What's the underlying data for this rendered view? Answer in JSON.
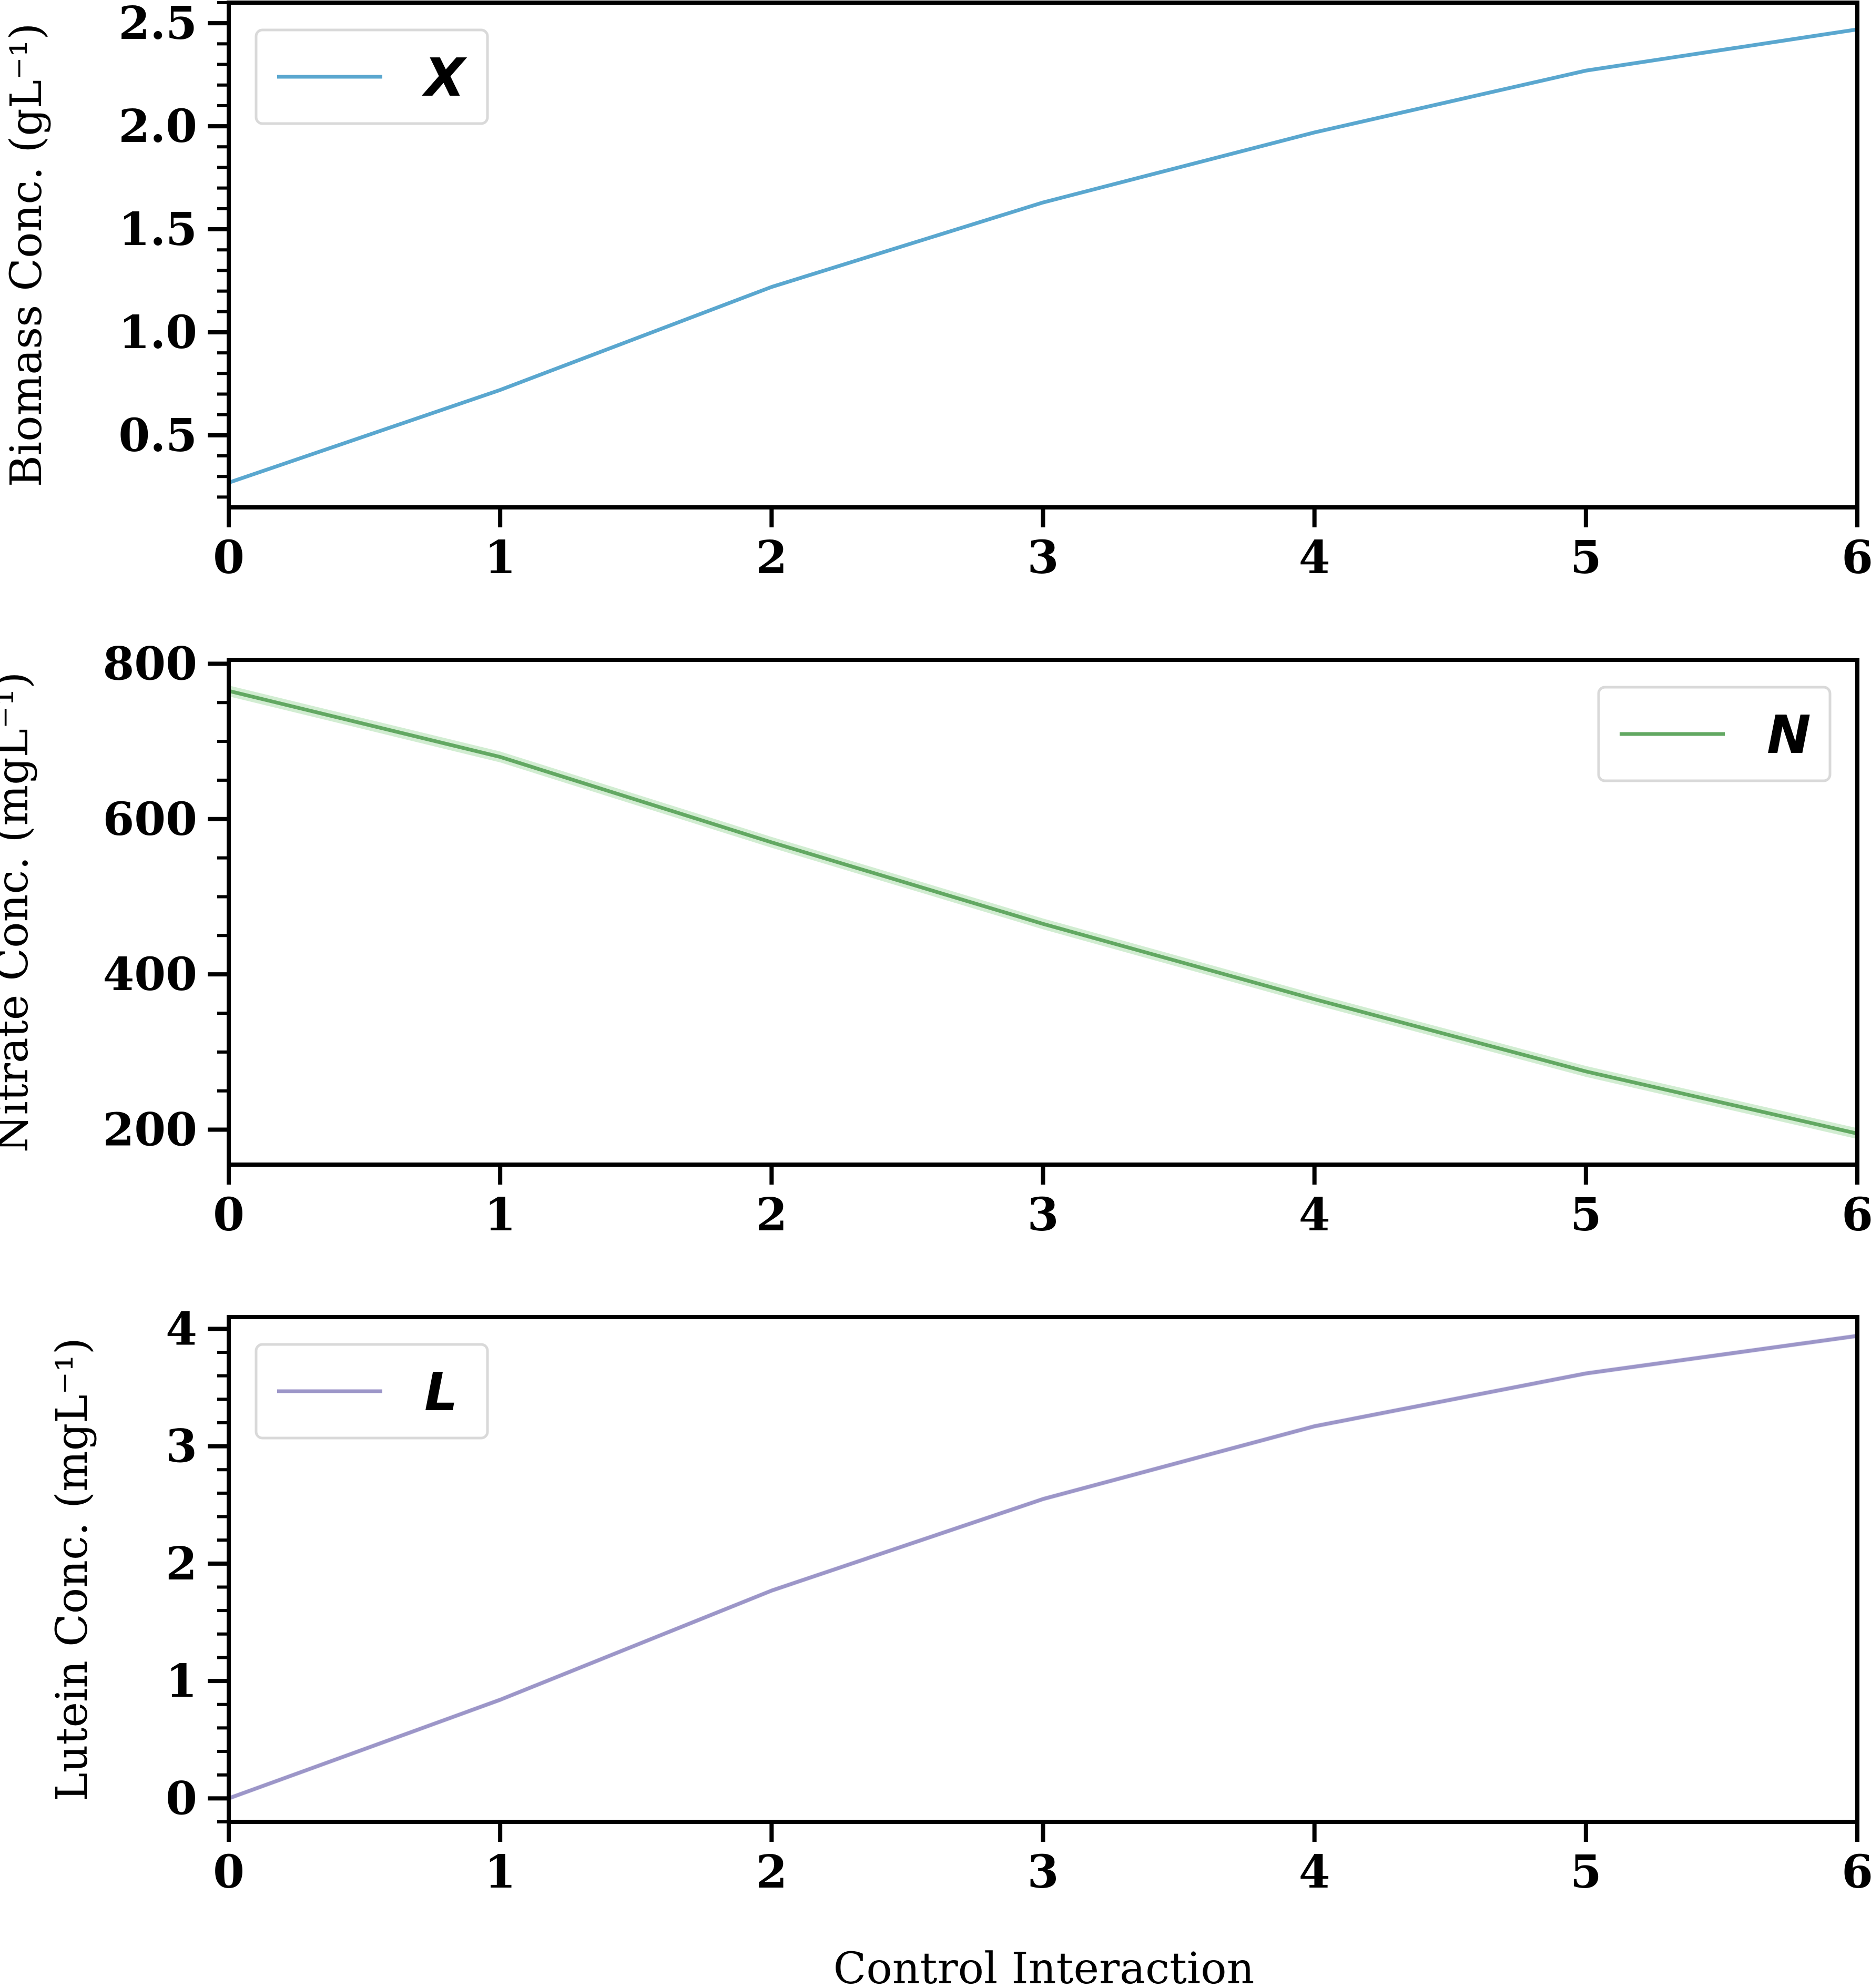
{
  "xlabel": "Control Interaction",
  "chart_data": [
    {
      "type": "line",
      "x": [
        0,
        1,
        2,
        3,
        4,
        5,
        6
      ],
      "xlim": [
        0,
        6
      ],
      "xticks": [
        "0",
        "1",
        "2",
        "3",
        "4",
        "5",
        "6"
      ],
      "ylim": [
        0.15,
        2.6
      ],
      "yticks": [
        0.5,
        1.0,
        1.5,
        2.0,
        2.5
      ],
      "ytick_labels": [
        "0.5",
        "1.0",
        "1.5",
        "2.0",
        "2.5"
      ],
      "yminor_step": 0.1,
      "ylabel": "Biomass Conc. (gL⁻¹)",
      "legend_position": "top-left",
      "series": [
        {
          "name": "X",
          "color": "#5aa7cf",
          "band_color": "#b8dcef",
          "band": 0.01,
          "values": [
            0.27,
            0.72,
            1.22,
            1.63,
            1.97,
            2.27,
            2.47
          ]
        }
      ]
    },
    {
      "type": "line",
      "x": [
        0,
        1,
        2,
        3,
        4,
        5,
        6
      ],
      "xlim": [
        0,
        6
      ],
      "xticks": [
        "0",
        "1",
        "2",
        "3",
        "4",
        "5",
        "6"
      ],
      "ylim": [
        155,
        805
      ],
      "yticks": [
        200,
        400,
        600,
        800
      ],
      "ytick_labels": [
        "200",
        "400",
        "600",
        "800"
      ],
      "yminor_step": 50,
      "ylabel": "Nitrate Conc. (mgL⁻¹)",
      "legend_position": "top-right",
      "series": [
        {
          "name": "N",
          "color": "#62a862",
          "band_color": "#bfe6bf",
          "band": 7,
          "values": [
            765,
            680,
            570,
            465,
            368,
            275,
            195
          ]
        }
      ]
    },
    {
      "type": "line",
      "x": [
        0,
        1,
        2,
        3,
        4,
        5,
        6
      ],
      "xlim": [
        0,
        6
      ],
      "xticks": [
        "0",
        "1",
        "2",
        "3",
        "4",
        "5",
        "6"
      ],
      "ylim": [
        -0.2,
        4.1
      ],
      "yticks": [
        0,
        1,
        2,
        3,
        4
      ],
      "ytick_labels": [
        "0",
        "1",
        "2",
        "3",
        "4"
      ],
      "yminor_step": 0.2,
      "ylabel": "Lutein Conc. (mgL⁻¹)",
      "legend_position": "top-left",
      "series": [
        {
          "name": "L",
          "color": "#9c96c8",
          "band_color": "#d6d2ec",
          "band": 0.02,
          "values": [
            0.0,
            0.84,
            1.77,
            2.55,
            3.17,
            3.62,
            3.94
          ]
        }
      ]
    }
  ]
}
